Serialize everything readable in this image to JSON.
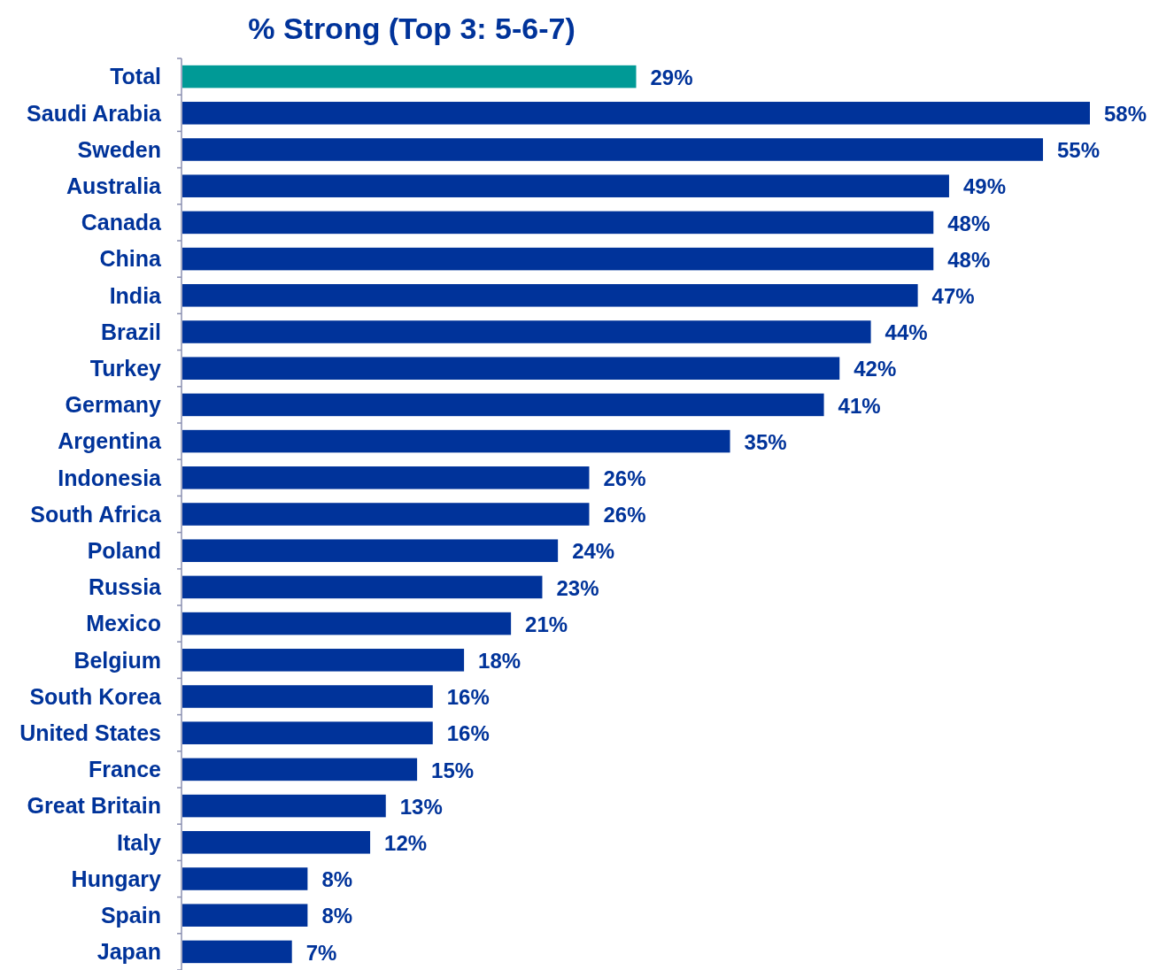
{
  "chart_data": {
    "type": "bar",
    "orientation": "horizontal",
    "title": "% Strong (Top 3: 5-6-7)",
    "categories": [
      "Total",
      "Saudi Arabia",
      "Sweden",
      "Australia",
      "Canada",
      "China",
      "India",
      "Brazil",
      "Turkey",
      "Germany",
      "Argentina",
      "Indonesia",
      "South Africa",
      "Poland",
      "Russia",
      "Mexico",
      "Belgium",
      "South Korea",
      "United States",
      "France",
      "Great Britain",
      "Italy",
      "Hungary",
      "Spain",
      "Japan"
    ],
    "values": [
      29,
      58,
      55,
      49,
      48,
      48,
      47,
      44,
      42,
      41,
      35,
      26,
      26,
      24,
      23,
      21,
      18,
      16,
      16,
      15,
      13,
      12,
      8,
      8,
      7
    ],
    "value_labels": [
      "29%",
      "58%",
      "55%",
      "49%",
      "48%",
      "48%",
      "47%",
      "44%",
      "42%",
      "41%",
      "35%",
      "26%",
      "26%",
      "24%",
      "23%",
      "21%",
      "18%",
      "16%",
      "16%",
      "15%",
      "13%",
      "12%",
      "8%",
      "8%",
      "7%"
    ],
    "colors": [
      "#009a96",
      "#00339a",
      "#00339a",
      "#00339a",
      "#00339a",
      "#00339a",
      "#00339a",
      "#00339a",
      "#00339a",
      "#00339a",
      "#00339a",
      "#00339a",
      "#00339a",
      "#00339a",
      "#00339a",
      "#00339a",
      "#00339a",
      "#00339a",
      "#00339a",
      "#00339a",
      "#00339a",
      "#00339a",
      "#00339a",
      "#00339a",
      "#00339a"
    ]
  }
}
